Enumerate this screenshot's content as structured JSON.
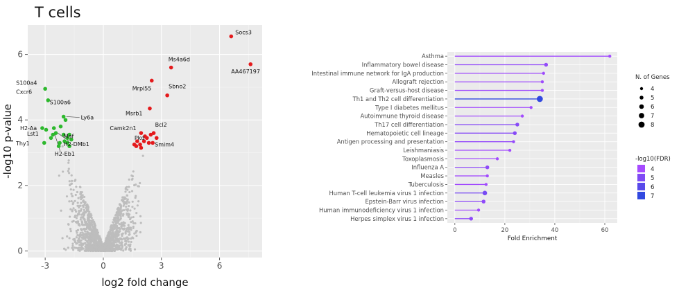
{
  "title": "T cells",
  "chart_data": [
    {
      "type": "scatter",
      "name": "volcano",
      "xlabel": "log2 fold change",
      "ylabel": "-log10 p-value",
      "xlim": [
        -3.9,
        8.2
      ],
      "ylim": [
        -0.2,
        6.9
      ],
      "xticks": [
        -3,
        0,
        3,
        6
      ],
      "yticks": [
        0,
        2,
        4,
        6
      ],
      "grid": true,
      "colors": {
        "up": "#e41a1c",
        "down": "#2db82d",
        "ns": "#bdbdbd",
        "panel": "#ebebeb"
      },
      "down_points": [
        {
          "x": -3.0,
          "y": 4.95
        },
        {
          "x": -2.85,
          "y": 4.6
        },
        {
          "x": -3.15,
          "y": 3.75
        },
        {
          "x": -2.95,
          "y": 3.7
        },
        {
          "x": -2.7,
          "y": 3.45
        },
        {
          "x": -2.6,
          "y": 3.55
        },
        {
          "x": -3.05,
          "y": 3.3
        },
        {
          "x": -2.55,
          "y": 3.75
        },
        {
          "x": -2.3,
          "y": 3.2
        },
        {
          "x": -2.2,
          "y": 3.8
        },
        {
          "x": -2.05,
          "y": 4.1
        },
        {
          "x": -1.95,
          "y": 4.0
        },
        {
          "x": -2.05,
          "y": 3.55
        },
        {
          "x": -1.85,
          "y": 3.45
        },
        {
          "x": -2.0,
          "y": 3.35
        },
        {
          "x": -1.75,
          "y": 3.55
        },
        {
          "x": -2.25,
          "y": 3.3
        },
        {
          "x": -1.85,
          "y": 3.3
        },
        {
          "x": -1.65,
          "y": 3.4
        },
        {
          "x": -2.45,
          "y": 3.6
        },
        {
          "x": -1.75,
          "y": 3.2
        }
      ],
      "up_points": [
        {
          "x": 6.6,
          "y": 6.55
        },
        {
          "x": 7.6,
          "y": 5.7
        },
        {
          "x": 3.5,
          "y": 5.6
        },
        {
          "x": 2.5,
          "y": 5.2
        },
        {
          "x": 3.3,
          "y": 4.75
        },
        {
          "x": 2.4,
          "y": 4.35
        },
        {
          "x": 1.95,
          "y": 3.6
        },
        {
          "x": 2.15,
          "y": 3.5
        },
        {
          "x": 2.45,
          "y": 3.55
        },
        {
          "x": 2.6,
          "y": 3.6
        },
        {
          "x": 2.1,
          "y": 3.35
        },
        {
          "x": 2.35,
          "y": 3.3
        },
        {
          "x": 2.75,
          "y": 3.45
        },
        {
          "x": 1.75,
          "y": 3.35
        },
        {
          "x": 1.9,
          "y": 3.25
        },
        {
          "x": 1.7,
          "y": 3.2
        },
        {
          "x": 2.25,
          "y": 3.45
        },
        {
          "x": 1.6,
          "y": 3.25
        },
        {
          "x": 2.55,
          "y": 3.3
        },
        {
          "x": 1.95,
          "y": 3.15
        }
      ],
      "labels": [
        {
          "text": "Socs3",
          "x": 6.6,
          "y": 6.55,
          "dx": 6,
          "dy": -3
        },
        {
          "text": "AA467197",
          "x": 7.6,
          "y": 5.7,
          "dx": -28,
          "dy": 13
        },
        {
          "text": "Ms4a6d",
          "x": 3.5,
          "y": 5.6,
          "dx": -4,
          "dy": -9
        },
        {
          "text": "Mrpl55",
          "x": 2.5,
          "y": 5.2,
          "dx": -28,
          "dy": 14
        },
        {
          "text": "Sbno2",
          "x": 3.3,
          "y": 4.75,
          "dx": 2,
          "dy": -10
        },
        {
          "text": "Msrb1",
          "x": 2.4,
          "y": 4.35,
          "dx": -35,
          "dy": 10
        },
        {
          "text": "Camk2n1",
          "x": 1.95,
          "y": 3.6,
          "dx": -45,
          "dy": -4
        },
        {
          "text": "Bcl2",
          "x": 2.6,
          "y": 3.6,
          "dx": 2,
          "dy": -9
        },
        {
          "text": "Pkd",
          "x": 1.75,
          "y": 3.35,
          "dx": -4,
          "dy": -2
        },
        {
          "text": "Smim4",
          "x": 2.55,
          "y": 3.3,
          "dx": 3,
          "dy": 5
        },
        {
          "text": "S100a4",
          "x": -3.0,
          "y": 4.95,
          "dx": -42,
          "dy": -6
        },
        {
          "text": "Cxcr6",
          "x": -3.0,
          "y": 4.95,
          "dx": -42,
          "dy": 7
        },
        {
          "text": "S100a6",
          "x": -2.05,
          "y": 4.1,
          "dx": -20,
          "dy": -18
        },
        {
          "text": "Ly6a",
          "x": -2.05,
          "y": 4.1,
          "dx": 25,
          "dy": 4,
          "leader": true
        },
        {
          "text": "H2-Aa",
          "x": -3.15,
          "y": 3.75,
          "dx": -32,
          "dy": 3
        },
        {
          "text": "Maf",
          "x": -2.05,
          "y": 3.55,
          "dx": 0,
          "dy": 5
        },
        {
          "text": "Lst1",
          "x": -3.15,
          "y": 3.75,
          "dx": -22,
          "dy": 11
        },
        {
          "text": "H2-DMb1",
          "x": -2.05,
          "y": 3.35,
          "dx": 0,
          "dy": 7,
          "leader_from": [
            -2.35,
            3.6
          ]
        },
        {
          "text": "Thy1",
          "x": -3.15,
          "y": 3.75,
          "dx": -38,
          "dy": 25
        },
        {
          "text": "H2-Eb1",
          "x": -2.3,
          "y": 3.2,
          "dx": -6,
          "dy": 14,
          "leader_from": [
            -2.5,
            3.55
          ]
        }
      ]
    },
    {
      "type": "lollipop",
      "name": "enrichment",
      "xlabel": "Fold Enrichment",
      "xlim": [
        -3,
        65
      ],
      "xticks": [
        0,
        20,
        40,
        60
      ],
      "grid": true,
      "categories": [
        "Asthma",
        "Inflammatory bowel disease",
        "Intestinal immune network for IgA production",
        "Allograft rejection",
        "Graft-versus-host disease",
        "Th1 and Th2 cell differentiation",
        "Type I diabetes mellitus",
        "Autoimmune thyroid disease",
        "Th17 cell differentiation",
        "Hematopoietic cell lineage",
        "Antigen processing and presentation",
        "Leishmaniasis",
        "Toxoplasmosis",
        "Influenza A",
        "Measles",
        "Tuberculosis",
        "Human T-cell leukemia virus 1 infection",
        "Epstein-Barr virus infection",
        "Human immunodeficiency virus 1 infection",
        "Herpes simplex virus 1 infection"
      ],
      "values": [
        62,
        36.5,
        35.5,
        35,
        35,
        34,
        30.5,
        27,
        25,
        24,
        23.5,
        22,
        17,
        13,
        13,
        12.5,
        12,
        11.5,
        9.5,
        6.5
      ],
      "n_genes": [
        4,
        5,
        4,
        4,
        4,
        8,
        4,
        4,
        5,
        5,
        4,
        4,
        4,
        5,
        4,
        4,
        6,
        5,
        4,
        5
      ],
      "neg_log10_fdr": [
        4.1,
        4.5,
        4.2,
        4.2,
        4.2,
        7.2,
        4.1,
        4.1,
        4.8,
        4.8,
        4.4,
        4.1,
        4.1,
        4.6,
        4.1,
        4.1,
        5.2,
        4.6,
        4.1,
        4.6
      ],
      "legend_size": {
        "title": "N. of Genes",
        "values": [
          4,
          5,
          6,
          7,
          8
        ]
      },
      "legend_color": {
        "title": "-log10(FDR)",
        "values": [
          4,
          5,
          6,
          7
        ]
      },
      "colors": {
        "low": "#a64bff",
        "high": "#3148e0",
        "panel": "#ebebeb"
      }
    }
  ]
}
